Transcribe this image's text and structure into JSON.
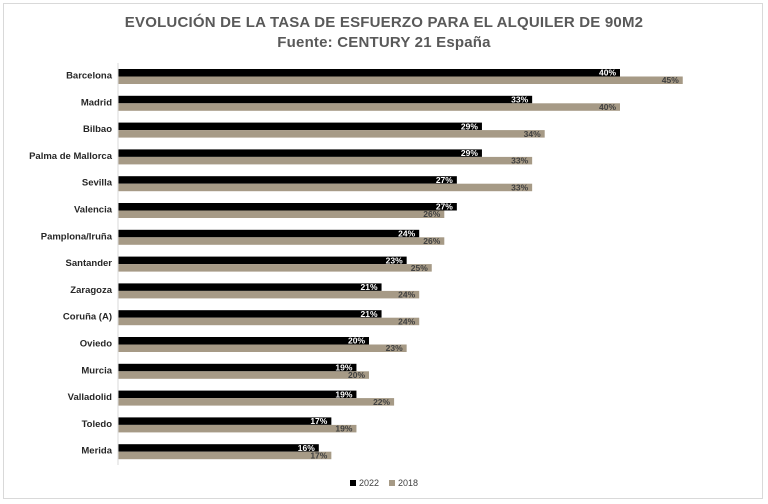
{
  "chart_data": {
    "type": "bar",
    "orientation": "horizontal",
    "title": "EVOLUCIÓN DE LA TASA DE ESFUERZO PARA EL ALQUILER DE 90M2",
    "subtitle": "Fuente: CENTURY 21 España",
    "categories": [
      "Barcelona",
      "Madrid",
      "Bilbao",
      "Palma de Mallorca",
      "Sevilla",
      "Valencia",
      "Pamplona/Iruña",
      "Santander",
      "Zaragoza",
      "Coruña (A)",
      "Oviedo",
      "Murcia",
      "Valladolid",
      "Toledo",
      "Merida"
    ],
    "series": [
      {
        "name": "2022",
        "color": "#000000",
        "values": [
          40,
          33,
          29,
          29,
          27,
          27,
          24,
          23,
          21,
          21,
          20,
          19,
          19,
          17,
          16
        ],
        "labels": [
          "40%",
          "33%",
          "29%",
          "29%",
          "27%",
          "27%",
          "24%",
          "23%",
          "21%",
          "21%",
          "20%",
          "19%",
          "19%",
          "17%",
          "16%"
        ]
      },
      {
        "name": "2018",
        "color": "#a69a86",
        "values": [
          45,
          40,
          34,
          33,
          33,
          26,
          26,
          25,
          24,
          24,
          23,
          20,
          22,
          19,
          17
        ],
        "labels": [
          "45%",
          "40%",
          "34%",
          "33%",
          "33%",
          "26%",
          "26%",
          "25%",
          "24%",
          "24%",
          "23%",
          "20%",
          "22%",
          "19%",
          "17%"
        ]
      }
    ],
    "xlim": [
      0,
      48
    ],
    "grid": false,
    "legend_position": "bottom"
  }
}
